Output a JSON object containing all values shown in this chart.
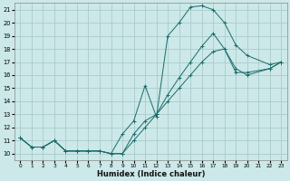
{
  "title": "",
  "xlabel": "Humidex (Indice chaleur)",
  "ylabel": "",
  "bg_color": "#cce8e8",
  "grid_color": "#aacccc",
  "line_color": "#1a6b6b",
  "xlim": [
    -0.5,
    23.5
  ],
  "ylim": [
    9.5,
    21.5
  ],
  "xticks": [
    0,
    1,
    2,
    3,
    4,
    5,
    6,
    7,
    8,
    9,
    10,
    11,
    12,
    13,
    14,
    15,
    16,
    17,
    18,
    19,
    20,
    21,
    22,
    23
  ],
  "yticks": [
    10,
    11,
    12,
    13,
    14,
    15,
    16,
    17,
    18,
    19,
    20,
    21
  ],
  "series1_x": [
    0,
    1,
    2,
    3,
    4,
    5,
    6,
    7,
    8,
    9,
    10,
    11,
    12,
    13,
    14,
    15,
    16,
    17,
    18,
    19,
    20,
    22,
    23
  ],
  "series1_y": [
    11.2,
    10.5,
    10.5,
    11.0,
    10.2,
    10.2,
    10.2,
    10.2,
    10.0,
    11.5,
    12.5,
    15.2,
    12.8,
    19.0,
    20.0,
    21.2,
    21.3,
    21.0,
    20.0,
    18.3,
    17.5,
    16.8,
    17.0
  ],
  "series2_x": [
    0,
    1,
    2,
    3,
    4,
    5,
    6,
    7,
    8,
    9,
    10,
    11,
    12,
    13,
    14,
    15,
    16,
    17,
    18,
    19,
    20,
    22,
    23
  ],
  "series2_y": [
    11.2,
    10.5,
    10.5,
    11.0,
    10.2,
    10.2,
    10.2,
    10.2,
    10.0,
    10.0,
    11.5,
    12.5,
    13.0,
    14.5,
    15.8,
    17.0,
    18.2,
    19.2,
    18.0,
    16.2,
    16.2,
    16.5,
    17.0
  ],
  "series3_x": [
    0,
    1,
    2,
    3,
    4,
    5,
    6,
    7,
    8,
    9,
    10,
    11,
    12,
    13,
    14,
    15,
    16,
    17,
    18,
    19,
    20,
    22,
    23
  ],
  "series3_y": [
    11.2,
    10.5,
    10.5,
    11.0,
    10.2,
    10.2,
    10.2,
    10.2,
    10.0,
    10.0,
    11.0,
    12.0,
    13.0,
    14.0,
    15.0,
    16.0,
    17.0,
    17.8,
    18.0,
    16.5,
    16.0,
    16.5,
    17.0
  ]
}
